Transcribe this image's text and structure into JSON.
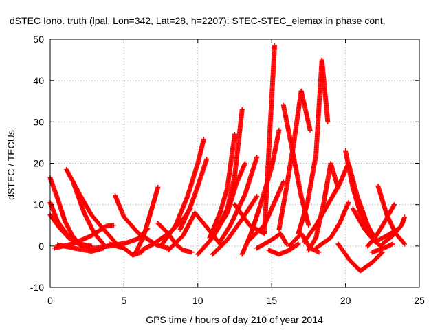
{
  "chart_data": {
    "type": "scatter",
    "title": "dSTEC Iono. truth (lpal, Lon=342, Lat=28, h=2207): STEC-STEC_elemax in phase cont.",
    "xlabel": "GPS time / hours of day 210 of year 2014",
    "ylabel": "dSTEC  / TECUs",
    "xlim": [
      0,
      25
    ],
    "ylim": [
      -10,
      50
    ],
    "xticks": [
      0,
      5,
      10,
      15,
      20,
      25
    ],
    "yticks": [
      -10,
      0,
      10,
      20,
      30,
      40,
      50
    ],
    "grid": true,
    "marker": "+",
    "color": "#ff0000",
    "series": [
      {
        "x": [
          0.0,
          0.5,
          1.0,
          1.5,
          2.0,
          2.6
        ],
        "y": [
          16.5,
          11.5,
          6.0,
          2.5,
          0.5,
          -0.2
        ]
      },
      {
        "x": [
          0.0,
          0.5,
          1.2,
          1.8,
          2.2
        ],
        "y": [
          10.5,
          6.0,
          2.5,
          0.8,
          0.0
        ]
      },
      {
        "x": [
          0.0,
          0.6,
          1.3,
          2.0,
          2.8
        ],
        "y": [
          7.5,
          4.5,
          1.8,
          0.5,
          0.0
        ]
      },
      {
        "x": [
          1.1,
          2.0,
          2.8,
          3.5,
          4.0,
          4.5
        ],
        "y": [
          18.5,
          12.5,
          7.5,
          4.5,
          2.5,
          0.5
        ]
      },
      {
        "x": [
          0.3,
          1.5,
          2.8,
          3.8,
          4.3
        ],
        "y": [
          -0.5,
          0.5,
          2.5,
          4.8,
          5.0
        ]
      },
      {
        "x": [
          0.5,
          1.6,
          2.8,
          3.6
        ],
        "y": [
          0.3,
          -0.5,
          -1.3,
          -0.5
        ]
      },
      {
        "x": [
          1.6,
          2.3,
          3.0,
          3.6
        ],
        "y": [
          15.0,
          8.0,
          3.0,
          0.5
        ]
      },
      {
        "x": [
          4.4,
          5.0,
          6.0,
          7.2,
          8.0
        ],
        "y": [
          12.2,
          7.0,
          3.0,
          0.3,
          -0.5
        ]
      },
      {
        "x": [
          2.5,
          4.0,
          5.2,
          6.0,
          6.6
        ],
        "y": [
          -0.8,
          0.0,
          0.8,
          1.8,
          4.2
        ]
      },
      {
        "x": [
          4.0,
          5.0,
          5.6,
          6.2
        ],
        "y": [
          0.5,
          -0.5,
          -2.2,
          -1.5
        ]
      },
      {
        "x": [
          5.8,
          6.3,
          6.8,
          7.3
        ],
        "y": [
          -1.5,
          2.0,
          8.0,
          14.2
        ]
      },
      {
        "x": [
          6.2,
          7.0,
          8.2,
          9.0,
          9.5
        ],
        "y": [
          -1.0,
          0.5,
          3.5,
          6.5,
          9.0
        ]
      },
      {
        "x": [
          7.3,
          8.0,
          8.5,
          9.0,
          9.6
        ],
        "y": [
          5.5,
          3.0,
          0.5,
          -1.0,
          -1.5
        ]
      },
      {
        "x": [
          7.5,
          8.5,
          9.3,
          10.0,
          10.4
        ],
        "y": [
          0.0,
          5.0,
          12.0,
          20.0,
          25.8
        ]
      },
      {
        "x": [
          8.8,
          9.5,
          10.0,
          10.6
        ],
        "y": [
          4.0,
          9.5,
          14.5,
          21.0
        ]
      },
      {
        "x": [
          8.0,
          9.0,
          9.8,
          10.5,
          11.5
        ],
        "y": [
          -1.0,
          2.5,
          8.0,
          5.0,
          0.5
        ]
      },
      {
        "x": [
          10.0,
          11.0,
          12.0,
          12.5,
          13.0
        ],
        "y": [
          -2.0,
          2.0,
          9.0,
          17.0,
          33.0
        ]
      },
      {
        "x": [
          10.8,
          11.5,
          12.0,
          12.5
        ],
        "y": [
          2.0,
          8.0,
          14.0,
          27.0
        ]
      },
      {
        "x": [
          11.0,
          12.0,
          12.6,
          13.2
        ],
        "y": [
          2.0,
          8.0,
          15.0,
          20.0
        ]
      },
      {
        "x": [
          11.5,
          12.2,
          13.2,
          14.0
        ],
        "y": [
          1.0,
          5.0,
          12.5,
          21.5
        ]
      },
      {
        "x": [
          11.0,
          12.0,
          13.0,
          14.0
        ],
        "y": [
          -2.0,
          1.5,
          6.5,
          12.0
        ]
      },
      {
        "x": [
          12.5,
          13.5,
          14.5,
          15.2
        ],
        "y": [
          10.0,
          5.0,
          3.0,
          48.5
        ]
      },
      {
        "x": [
          13.0,
          13.6,
          14.2,
          15.0,
          15.5
        ],
        "y": [
          -2.0,
          3.0,
          9.5,
          19.0,
          28.0
        ]
      },
      {
        "x": [
          13.5,
          14.5,
          15.0,
          15.8
        ],
        "y": [
          1.5,
          5.0,
          9.0,
          15.5
        ]
      },
      {
        "x": [
          14.0,
          15.0,
          15.6,
          16.0
        ],
        "y": [
          -0.5,
          1.5,
          3.0,
          0.5
        ]
      },
      {
        "x": [
          14.8,
          15.5,
          16.2,
          16.8
        ],
        "y": [
          -1.0,
          -2.0,
          -1.0,
          0.5
        ]
      },
      {
        "x": [
          15.5,
          16.0,
          16.5,
          17.0,
          17.6
        ],
        "y": [
          4.0,
          14.0,
          25.0,
          37.5,
          28.0
        ]
      },
      {
        "x": [
          15.8,
          16.3,
          17.0,
          17.5
        ],
        "y": [
          34.0,
          25.0,
          12.0,
          5.0
        ]
      },
      {
        "x": [
          16.8,
          17.4,
          18.0,
          18.4,
          18.8
        ],
        "y": [
          3.0,
          10.0,
          22.0,
          45.0,
          30.0
        ]
      },
      {
        "x": [
          17.5,
          18.0,
          18.5,
          19.0,
          19.5
        ],
        "y": [
          -1.0,
          2.0,
          10.0,
          20.0,
          14.0
        ]
      },
      {
        "x": [
          16.2,
          17.0,
          17.6,
          18.2
        ],
        "y": [
          0.0,
          3.0,
          -0.5,
          -1.5
        ]
      },
      {
        "x": [
          17.2,
          18.0,
          18.8,
          19.6,
          20.2
        ],
        "y": [
          1.0,
          5.0,
          10.0,
          15.0,
          20.0
        ]
      },
      {
        "x": [
          18.0,
          19.0,
          19.6,
          20.2
        ],
        "y": [
          -0.5,
          2.0,
          5.5,
          10.5
        ]
      },
      {
        "x": [
          19.5,
          20.3,
          21.0,
          21.8,
          22.5
        ],
        "y": [
          0.5,
          -3.5,
          -6.0,
          -4.0,
          -1.5
        ]
      },
      {
        "x": [
          20.0,
          20.5,
          21.0,
          21.8,
          22.5
        ],
        "y": [
          23.0,
          14.0,
          8.0,
          2.0,
          -0.5
        ]
      },
      {
        "x": [
          20.2,
          20.8,
          21.5,
          22.2
        ],
        "y": [
          20.0,
          12.0,
          5.0,
          0.5
        ]
      },
      {
        "x": [
          20.5,
          21.3,
          22.0,
          22.8,
          23.5
        ],
        "y": [
          9.0,
          4.0,
          1.0,
          2.5,
          4.0
        ]
      },
      {
        "x": [
          21.5,
          22.0,
          22.6,
          23.3
        ],
        "y": [
          0.0,
          2.0,
          5.5,
          10.0
        ]
      },
      {
        "x": [
          22.2,
          22.8,
          23.4,
          24.0
        ],
        "y": [
          14.5,
          7.5,
          3.0,
          0.5
        ]
      },
      {
        "x": [
          22.5,
          23.2,
          23.8,
          24.0
        ],
        "y": [
          0.5,
          2.5,
          5.0,
          7.0
        ]
      },
      {
        "x": [
          21.8,
          22.6,
          23.2
        ],
        "y": [
          -1.5,
          -0.5,
          0.5
        ]
      }
    ]
  }
}
